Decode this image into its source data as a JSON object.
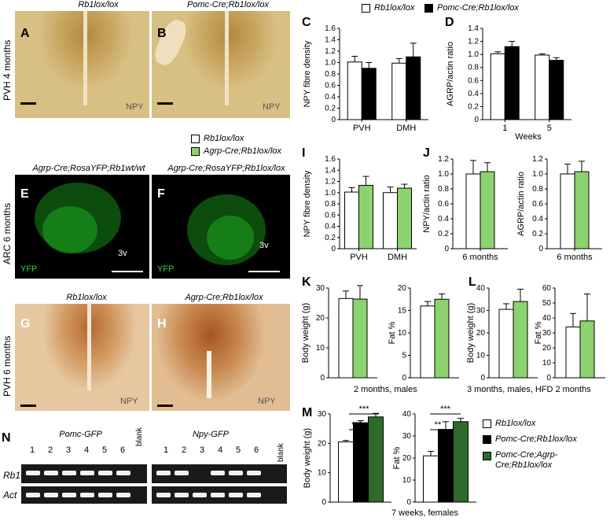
{
  "colors": {
    "white_bar": "#ffffff",
    "black_bar": "#000000",
    "green_bar": "#8cd26e",
    "dark_green_bar": "#2e6a2a"
  },
  "top_legend": {
    "rb1": "Rb1lox/lox",
    "pomc": "Pomc-Cre;Rb1lox/lox"
  },
  "panel_A": {
    "letter": "A",
    "title": "Rb1lox/lox",
    "tag": "NPY"
  },
  "panel_B": {
    "letter": "B",
    "title": "Pomc-Cre;Rb1lox/lox",
    "tag": "NPY"
  },
  "row1_label": "PVH 4 months",
  "mid_legend": {
    "rb1": "Rb1lox/lox",
    "agrp": "Agrp-Cre;Rb1lox/lox"
  },
  "panel_E": {
    "letter": "E",
    "title": "Agrp-Cre;RosaYFP;Rb1wt/wt",
    "tag": "YFP",
    "ventricle": "3v"
  },
  "panel_F": {
    "letter": "F",
    "title": "Agrp-Cre;RosaYFP;Rb1lox/lox",
    "tag": "YFP",
    "ventricle": "3v"
  },
  "row2_label": "ARC 6 months",
  "panel_G": {
    "letter": "G",
    "title": "Rb1lox/lox",
    "tag": "NPY"
  },
  "panel_H": {
    "letter": "H",
    "title": "Agrp-Cre;Rb1lox/lox",
    "tag": "NPY"
  },
  "row3_label": "PVH 6 months",
  "panel_N": {
    "letter": "N",
    "gel1_title": "Pomc-GFP",
    "gel2_title": "Npy-GFP",
    "lanes": [
      "1",
      "2",
      "3",
      "4",
      "5",
      "6"
    ],
    "blank": "blank",
    "row_rb1": "Rb1",
    "row_act": "Act",
    "gel1_rb1_bands": [
      1,
      1,
      1,
      1,
      1,
      1
    ],
    "gel2_rb1_bands": [
      1,
      1,
      0,
      1,
      1,
      1
    ]
  },
  "panel_M_legend": {
    "rb1": "Rb1lox/lox",
    "pomc": "Pomc-Cre;Rb1lox/lox",
    "pomc_agrp_line1": "Pomc-Cre;Agrp-",
    "pomc_agrp_line2": "Cre;Rb1lox/lox"
  },
  "chart_data": [
    {
      "panel": "C",
      "type": "bar",
      "ylabel": "NPY fibre density",
      "ylim": [
        0,
        1.6
      ],
      "yticks": [
        "0",
        "0.2",
        "0.4",
        "0.6",
        "0.8",
        "1.0",
        "1.2",
        "1.4",
        "1.6"
      ],
      "categories": [
        "PVH",
        "DMH"
      ],
      "xlabel": "",
      "series": [
        {
          "name": "Rb1lox/lox",
          "values": [
            1.01,
            0.99
          ],
          "err": [
            0.1,
            0.08
          ]
        },
        {
          "name": "Pomc-Cre;Rb1lox/lox",
          "values": [
            0.9,
            1.1
          ],
          "err": [
            0.1,
            0.24
          ]
        }
      ]
    },
    {
      "panel": "D",
      "type": "bar",
      "ylabel": "AGRP/actin ratio",
      "ylim": [
        0,
        1.4
      ],
      "yticks": [
        "0",
        "0.2",
        "0.4",
        "0.6",
        "0.8",
        "1.0",
        "1.2",
        "1.4"
      ],
      "categories": [
        "1",
        "5"
      ],
      "xlabel": "Weeks",
      "series": [
        {
          "name": "Rb1lox/lox",
          "values": [
            1.01,
            0.99
          ],
          "err": [
            0.03,
            0.02
          ]
        },
        {
          "name": "Pomc-Cre;Rb1lox/lox",
          "values": [
            1.12,
            0.91
          ],
          "err": [
            0.08,
            0.04
          ]
        }
      ]
    },
    {
      "panel": "I",
      "type": "bar",
      "ylabel": "NPY fibre density",
      "ylim": [
        0,
        1.6
      ],
      "yticks": [
        "0",
        "0.2",
        "0.4",
        "0.6",
        "0.8",
        "1.0",
        "1.2",
        "1.4",
        "1.6"
      ],
      "categories": [
        "PVH",
        "DMH"
      ],
      "xlabel": "",
      "series": [
        {
          "name": "Rb1lox/lox",
          "values": [
            1.01,
            1.0
          ],
          "err": [
            0.08,
            0.1
          ]
        },
        {
          "name": "Agrp-Cre;Rb1lox/lox",
          "values": [
            1.13,
            1.08
          ],
          "err": [
            0.16,
            0.07
          ]
        }
      ]
    },
    {
      "panel": "J1",
      "type": "bar",
      "ylabel": "NPY/actin ratio",
      "ylim": [
        0,
        1.2
      ],
      "yticks": [
        "0",
        "0.2",
        "0.4",
        "0.6",
        "0.8",
        "1.0",
        "1.2"
      ],
      "categories": [
        "6 months"
      ],
      "xlabel": "",
      "series": [
        {
          "name": "Rb1lox/lox",
          "values": [
            1.0
          ],
          "err": [
            0.18
          ]
        },
        {
          "name": "Agrp-Cre;Rb1lox/lox",
          "values": [
            1.03
          ],
          "err": [
            0.12
          ]
        }
      ]
    },
    {
      "panel": "J2",
      "type": "bar",
      "ylabel": "AGRP/actin ratio",
      "ylim": [
        0,
        1.2
      ],
      "yticks": [
        "0",
        "0.2",
        "0.4",
        "0.6",
        "0.8",
        "1.0",
        "1.2"
      ],
      "categories": [
        "6 months"
      ],
      "xlabel": "",
      "series": [
        {
          "name": "Rb1lox/lox",
          "values": [
            1.0
          ],
          "err": [
            0.13
          ]
        },
        {
          "name": "Agrp-Cre;Rb1lox/lox",
          "values": [
            1.03
          ],
          "err": [
            0.14
          ]
        }
      ]
    },
    {
      "panel": "K1",
      "type": "bar",
      "ylabel": "Body weight (g)",
      "ylim": [
        0,
        30
      ],
      "yticks": [
        "0",
        "10",
        "20",
        "30"
      ],
      "categories": [
        ""
      ],
      "xlabel": "2 months, males",
      "series": [
        {
          "name": "Rb1lox/lox",
          "values": [
            26.5
          ],
          "err": [
            2.5
          ]
        },
        {
          "name": "Agrp-Cre;Rb1lox/lox",
          "values": [
            26.3
          ],
          "err": [
            4.5
          ]
        }
      ]
    },
    {
      "panel": "K2",
      "type": "bar",
      "ylabel": "Fat %",
      "ylim": [
        0,
        20
      ],
      "yticks": [
        "0",
        "5",
        "10",
        "15",
        "20"
      ],
      "categories": [
        ""
      ],
      "xlabel": "",
      "series": [
        {
          "name": "Rb1lox/lox",
          "values": [
            16.0
          ],
          "err": [
            1.0
          ]
        },
        {
          "name": "Agrp-Cre;Rb1lox/lox",
          "values": [
            17.5
          ],
          "err": [
            1.2
          ]
        }
      ]
    },
    {
      "panel": "L1",
      "type": "bar",
      "ylabel": "Body weight (g)",
      "ylim": [
        0,
        40
      ],
      "yticks": [
        "0",
        "10",
        "20",
        "30",
        "40"
      ],
      "categories": [
        ""
      ],
      "xlabel": "3 months, males, HFD 2 months",
      "series": [
        {
          "name": "Rb1lox/lox",
          "values": [
            30.5
          ],
          "err": [
            2.5
          ]
        },
        {
          "name": "Agrp-Cre;Rb1lox/lox",
          "values": [
            34.0
          ],
          "err": [
            5.5
          ]
        }
      ]
    },
    {
      "panel": "L2",
      "type": "bar",
      "ylabel": "Fat %",
      "ylim": [
        0,
        60
      ],
      "yticks": [
        "0",
        "10",
        "20",
        "30",
        "40",
        "50",
        "60"
      ],
      "categories": [
        ""
      ],
      "xlabel": "",
      "series": [
        {
          "name": "Rb1lox/lox",
          "values": [
            34.0
          ],
          "err": [
            9.0
          ]
        },
        {
          "name": "Agrp-Cre;Rb1lox/lox",
          "values": [
            38.0
          ],
          "err": [
            18.0
          ]
        }
      ]
    },
    {
      "panel": "M1",
      "type": "bar",
      "ylabel": "Body weight (g)",
      "ylim": [
        0,
        30
      ],
      "yticks": [
        "0",
        "10",
        "20",
        "30"
      ],
      "categories": [
        ""
      ],
      "xlabel": "7 weeks, females",
      "series": [
        {
          "name": "Rb1lox/lox",
          "values": [
            20.5
          ],
          "err": [
            0.5
          ]
        },
        {
          "name": "Pomc-Cre;Rb1lox/lox",
          "values": [
            27.0
          ],
          "err": [
            0.7
          ]
        },
        {
          "name": "Pomc-Cre;Agrp-Cre;Rb1lox/lox",
          "values": [
            29.0
          ],
          "err": [
            1.2
          ]
        }
      ],
      "significance": [
        "***",
        "***"
      ]
    },
    {
      "panel": "M2",
      "type": "bar",
      "ylabel": "Fat %",
      "ylim": [
        0,
        40
      ],
      "yticks": [
        "0",
        "10",
        "20",
        "30",
        "40"
      ],
      "categories": [
        ""
      ],
      "xlabel": "",
      "series": [
        {
          "name": "Rb1lox/lox",
          "values": [
            21.0
          ],
          "err": [
            2.0
          ]
        },
        {
          "name": "Pomc-Cre;Rb1lox/lox",
          "values": [
            33.0
          ],
          "err": [
            3.5
          ]
        },
        {
          "name": "Pomc-Cre;Agrp-Cre;Rb1lox/lox",
          "values": [
            36.5
          ],
          "err": [
            1.5
          ]
        }
      ],
      "significance": [
        "**",
        "***"
      ]
    }
  ],
  "panel_letters": {
    "C": "C",
    "D": "D",
    "I": "I",
    "J": "J",
    "K": "K",
    "L": "L",
    "M": "M"
  }
}
